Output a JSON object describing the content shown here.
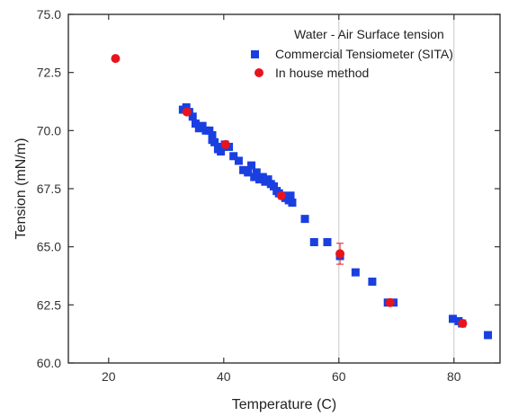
{
  "colors": {
    "sita": "#1a3fe0",
    "inhouse": "#e8141c",
    "grid": "#c8c8c8",
    "axis": "#333333"
  },
  "chart_data": {
    "type": "scatter",
    "title": "",
    "xlabel": "Temperature (C)",
    "ylabel": "Tension (mN/m)",
    "xlim": [
      13,
      88
    ],
    "ylim": [
      60,
      75
    ],
    "xticks": [
      "20",
      "40",
      "60",
      "80"
    ],
    "xtick_values": [
      20,
      40,
      60,
      80
    ],
    "yticks": [
      "60.0",
      "62.5",
      "65.0",
      "67.5",
      "70.0",
      "72.5",
      "75.0"
    ],
    "ytick_values": [
      60,
      62.5,
      65,
      67.5,
      70,
      72.5,
      75
    ],
    "grid": "vertical at x = 60 and 80",
    "legend_position": "top-right",
    "legend_title": "Water - Air Surface tension",
    "series": [
      {
        "name": "Commercial Tensiometer (SITA)",
        "marker": "square",
        "x": [
          32.9,
          33.5,
          34.0,
          34.6,
          35.1,
          35.7,
          36.3,
          36.9,
          37.5,
          38.0,
          38.0,
          38.4,
          39.0,
          39.5,
          39.8,
          40.2,
          40.9,
          41.7,
          42.6,
          43.4,
          44.2,
          44.8,
          45.3,
          45.7,
          46.2,
          46.8,
          47.2,
          47.7,
          48.2,
          48.7,
          49.2,
          49.6,
          50.2,
          50.7,
          51.3,
          51.6,
          51.9,
          54.1,
          55.7,
          58.0,
          60.2,
          62.9,
          65.8,
          68.5,
          69.5,
          79.8,
          80.8,
          81.4,
          85.9
        ],
        "y": [
          70.9,
          71.0,
          70.8,
          70.6,
          70.3,
          70.1,
          70.2,
          70.0,
          70.0,
          69.8,
          69.6,
          69.5,
          69.2,
          69.1,
          69.3,
          69.4,
          69.3,
          68.9,
          68.7,
          68.3,
          68.2,
          68.5,
          68.0,
          68.2,
          67.9,
          68.0,
          67.8,
          67.9,
          67.7,
          67.6,
          67.4,
          67.3,
          67.2,
          67.1,
          67.0,
          67.2,
          66.9,
          66.2,
          65.2,
          65.2,
          64.6,
          63.9,
          63.5,
          62.6,
          62.6,
          61.9,
          61.8,
          61.7,
          61.2
        ]
      },
      {
        "name": "In house method",
        "marker": "circle",
        "x": [
          21.2,
          33.6,
          40.3,
          50.0,
          60.2,
          68.9,
          81.5
        ],
        "y": [
          73.1,
          70.8,
          69.4,
          67.2,
          64.7,
          62.6,
          61.7
        ],
        "error": [
          0,
          0,
          0,
          0,
          0.45,
          0,
          0
        ]
      }
    ]
  }
}
